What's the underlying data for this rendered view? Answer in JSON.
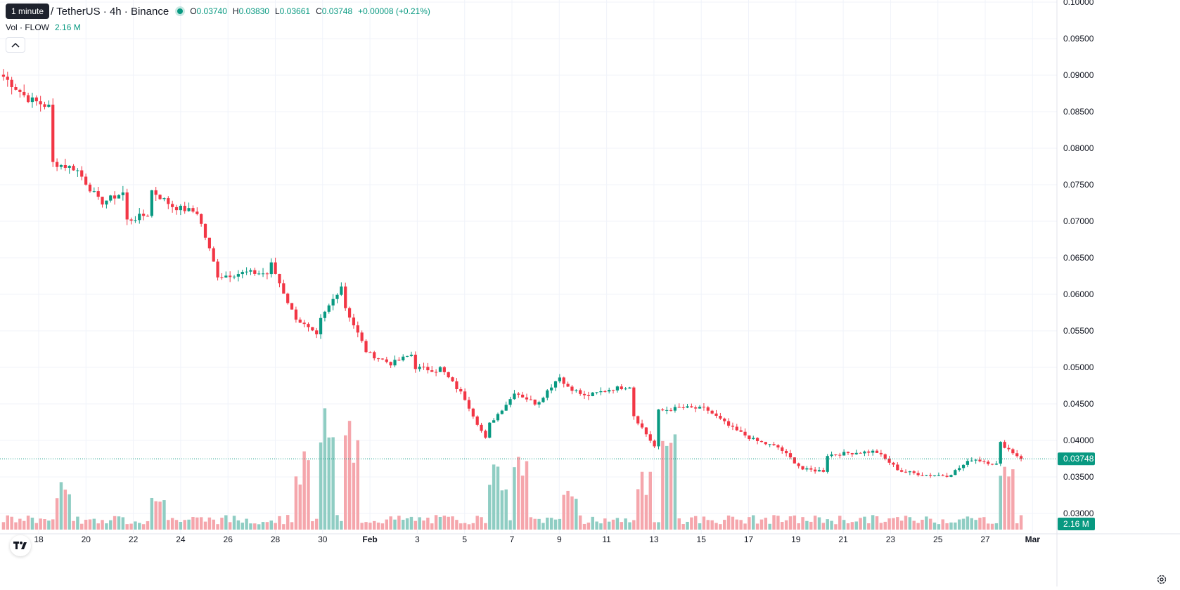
{
  "header": {
    "tooltip": "1 minute",
    "symbol": "/ TetherUS · 4h · Binance",
    "ohlc": {
      "o_label": "O",
      "o_value": "0.03740",
      "h_label": "H",
      "h_value": "0.03830",
      "l_label": "L",
      "l_value": "0.03661",
      "c_label": "C",
      "c_value": "0.03748",
      "change": "+0.00008 (+0.21%)"
    },
    "volume": {
      "label": "Vol · FLOW",
      "value": "2.16 M"
    }
  },
  "colors": {
    "up": "#089981",
    "down": "#f23645",
    "up_vol": "#8fcdc3",
    "down_vol": "#f5a6ac",
    "grid": "#f0f3fa",
    "text": "#131722"
  },
  "price_axis": {
    "labels": [
      "0.10000",
      "0.09500",
      "0.09000",
      "0.08500",
      "0.08000",
      "0.07500",
      "0.07000",
      "0.06500",
      "0.06000",
      "0.05500",
      "0.05000",
      "0.04500",
      "0.04000",
      "0.03500",
      "0.03000"
    ],
    "last_price": "0.03748",
    "last_volume": "2.16 M"
  },
  "time_axis": {
    "labels": [
      "18",
      "20",
      "22",
      "24",
      "26",
      "28",
      "30",
      "Feb",
      "3",
      "5",
      "7",
      "9",
      "11",
      "13",
      "15",
      "17",
      "19",
      "21",
      "23",
      "25",
      "27",
      "Mar"
    ]
  },
  "chart_data": {
    "type": "candlestick",
    "interval": "4h",
    "ylim": [
      0.03,
      0.1
    ],
    "last_price": 0.03748,
    "anchors": [
      [
        "Jan 17",
        0.0898
      ],
      [
        "Jan 18",
        0.0868
      ],
      [
        "Jan 19",
        0.0855
      ],
      [
        "Jan 19",
        0.078
      ],
      [
        "Jan 20",
        0.0772
      ],
      [
        "Jan 21",
        0.0725
      ],
      [
        "Jan 22",
        0.074
      ],
      [
        "Jan 22",
        0.07
      ],
      [
        "Jan 23",
        0.071
      ],
      [
        "Jan 23",
        0.0745
      ],
      [
        "Jan 24",
        0.072
      ],
      [
        "Jan 25",
        0.0712
      ],
      [
        "Jan 25",
        0.0712
      ],
      [
        "Jan 26",
        0.061
      ],
      [
        "Jan 26",
        0.0625
      ],
      [
        "Jan 27",
        0.063
      ],
      [
        "Jan 28",
        0.0628
      ],
      [
        "Jan 28",
        0.0645
      ],
      [
        "Jan 29",
        0.057
      ],
      [
        "Jan 30",
        0.054
      ],
      [
        "Jan 30",
        0.056
      ],
      [
        "Jan 31",
        0.0615
      ],
      [
        "Jan 31",
        0.059
      ],
      [
        "Feb 1",
        0.052
      ],
      [
        "Feb 2",
        0.0505
      ],
      [
        "Feb 3",
        0.052
      ],
      [
        "Feb 3",
        0.05
      ],
      [
        "Feb 4",
        0.0495
      ],
      [
        "Feb 4",
        0.05
      ],
      [
        "Feb 5",
        0.046
      ],
      [
        "Feb 6",
        0.0395
      ],
      [
        "Feb 6",
        0.042
      ],
      [
        "Feb 7",
        0.046
      ],
      [
        "Feb 7",
        0.0468
      ],
      [
        "Feb 8",
        0.045
      ],
      [
        "Feb 9",
        0.049
      ],
      [
        "Feb 9",
        0.048
      ],
      [
        "Feb 10",
        0.046
      ],
      [
        "Feb 11",
        0.047
      ],
      [
        "Feb 11",
        0.047
      ],
      [
        "Feb 12",
        0.0475
      ],
      [
        "Feb 12",
        0.0435
      ],
      [
        "Feb 13",
        0.0385
      ],
      [
        "Feb 13",
        0.044
      ],
      [
        "Feb 14",
        0.0445
      ],
      [
        "Feb 15",
        0.0443
      ],
      [
        "Feb 16",
        0.0418
      ],
      [
        "Feb 17",
        0.04
      ],
      [
        "Feb 18",
        0.039
      ],
      [
        "Feb 19",
        0.036
      ],
      [
        "Feb 20",
        0.0358
      ],
      [
        "Feb 20",
        0.038
      ],
      [
        "Feb 21",
        0.0383
      ],
      [
        "Feb 22",
        0.0385
      ],
      [
        "Feb 23",
        0.0358
      ],
      [
        "Feb 24",
        0.0353
      ],
      [
        "Feb 25",
        0.0352
      ],
      [
        "Feb 26",
        0.0375
      ],
      [
        "Feb 27",
        0.0367
      ],
      [
        "Feb 27",
        0.04
      ],
      [
        "Feb 28",
        0.0375
      ]
    ],
    "volume_spikes": [
      [
        "Jan 19",
        0.4
      ],
      [
        "Jan 23",
        0.3
      ],
      [
        "Jan 29",
        0.6
      ],
      [
        "Jan 30",
        1.0
      ],
      [
        "Jan 31",
        0.88
      ],
      [
        "Feb 6",
        0.5
      ],
      [
        "Feb 7",
        0.6
      ],
      [
        "Feb 9",
        0.3
      ],
      [
        "Feb 12",
        0.45
      ],
      [
        "Feb 13",
        0.85
      ],
      [
        "Feb 27",
        0.52
      ]
    ]
  }
}
